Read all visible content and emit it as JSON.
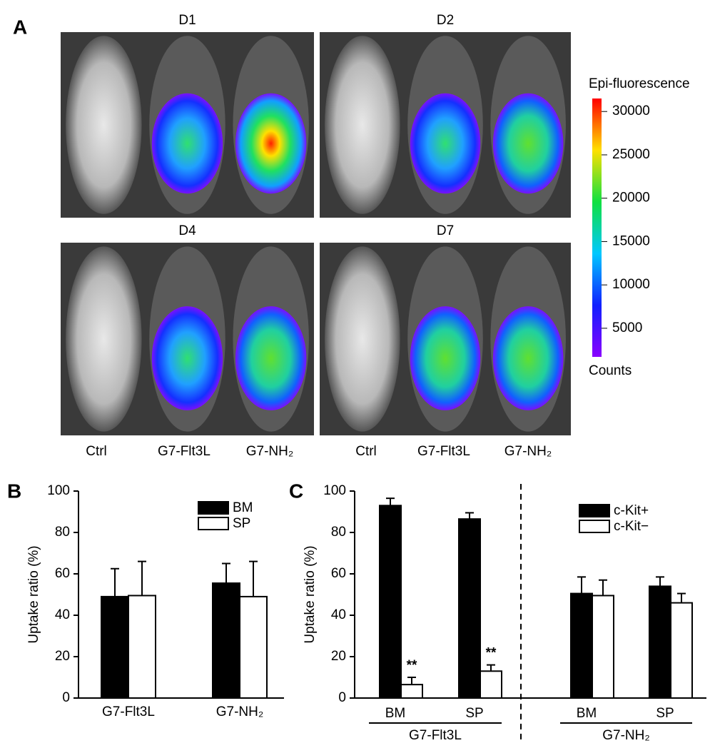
{
  "chart_data": [
    {
      "type": "image",
      "panel_label": "A",
      "panels": [
        "D1",
        "D2",
        "D4",
        "D7"
      ],
      "categories": [
        "Ctrl",
        "G7-Flt3L",
        "G7-NH₂"
      ],
      "colorbar_title": "Epi-fluorescence",
      "colorbar_unit": "Counts",
      "zlim": [
        1700,
        31500
      ],
      "zticks": [
        5000,
        10000,
        15000,
        20000,
        25000,
        30000
      ]
    },
    {
      "type": "bar",
      "panel_label": "B",
      "ylabel": "Uptake ratio (%)",
      "categories": [
        "G7-Flt3L",
        "G7-NH₂"
      ],
      "series": [
        {
          "name": "BM",
          "color": "#000000",
          "values": [
            49,
            55.5
          ],
          "errors": [
            13.5,
            9.5
          ]
        },
        {
          "name": "SP",
          "color": "#ffffff",
          "values": [
            49.5,
            49
          ],
          "errors": [
            16.5,
            17
          ]
        }
      ],
      "ylim": [
        0,
        100
      ],
      "yticks": [
        0,
        20,
        40,
        60,
        80,
        100
      ]
    },
    {
      "type": "bar",
      "panel_label": "C",
      "ylabel": "Uptake ratio (%)",
      "categories": [
        "BM",
        "SP",
        "BM",
        "SP"
      ],
      "groups": [
        "G7-Flt3L",
        "G7-NH₂"
      ],
      "series": [
        {
          "name": "c-Kit+",
          "color": "#000000",
          "values": [
            93,
            86.5,
            50.5,
            54
          ],
          "errors": [
            3.5,
            3,
            8,
            4.5
          ]
        },
        {
          "name": "c-Kit−",
          "color": "#ffffff",
          "values": [
            6.5,
            13,
            49.5,
            46
          ],
          "errors": [
            3.5,
            3,
            7.5,
            4.5
          ]
        }
      ],
      "annotations": [
        "**",
        "**"
      ],
      "ylim": [
        0,
        100
      ],
      "yticks": [
        0,
        20,
        40,
        60,
        80,
        100
      ]
    }
  ]
}
